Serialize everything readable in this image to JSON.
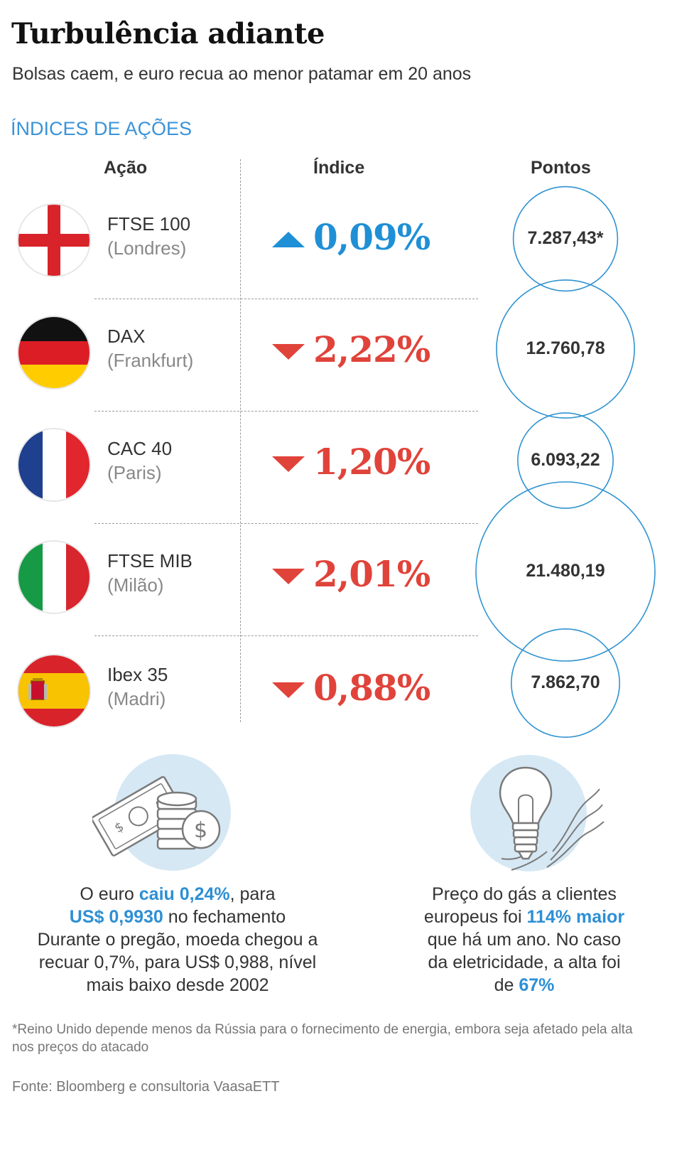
{
  "header": {
    "title": "Turbulência adiante",
    "subtitle": "Bolsas caem, e euro recua ao menor patamar em 20 anos"
  },
  "section": {
    "label": "ÍNDICES DE AÇÕES"
  },
  "columns": {
    "acao": "Ação",
    "indice": "Índice",
    "pontos": "Pontos"
  },
  "colors": {
    "up": "#1f8fd6",
    "down": "#e0433a",
    "accent": "#3a93d8",
    "bubble": "#2f93d1"
  },
  "rows": [
    {
      "name": "FTSE 100",
      "city": "(Londres)",
      "change": "0,09%",
      "direction": "up",
      "points": "7.287,43*",
      "points_value": 7287.43,
      "flag": "england-flag"
    },
    {
      "name": "DAX",
      "city": "(Frankfurt)",
      "change": "2,22%",
      "direction": "down",
      "points": "12.760,78",
      "points_value": 12760.78,
      "flag": "germany-flag"
    },
    {
      "name": "CAC 40",
      "city": "(Paris)",
      "change": "1,20%",
      "direction": "down",
      "points": "6.093,22",
      "points_value": 6093.22,
      "flag": "france-flag"
    },
    {
      "name": "FTSE MIB",
      "city": "(Milão)",
      "change": "2,01%",
      "direction": "down",
      "points": "21.480,19",
      "points_value": 21480.19,
      "flag": "italy-flag"
    },
    {
      "name": "Ibex 35",
      "city": "(Madri)",
      "change": "0,88%",
      "direction": "down",
      "points": "7.862,70",
      "points_value": 7862.7,
      "flag": "spain-flag"
    }
  ],
  "notes": {
    "euro": {
      "icon": "money-coins-icon",
      "part1": "O euro ",
      "hl1": "caiu 0,24%",
      "part2": ", para",
      "hl2": "US$ 0,9930",
      "part3": " no fechamento",
      "line3": "Durante o pregão, moeda chegou a",
      "line4": "recuar 0,7%, para US$ 0,988, nível",
      "line5": "mais baixo desde 2002"
    },
    "gas": {
      "icon": "lightbulb-icon",
      "line1": "Preço do gás a clientes",
      "part2": "europeus foi ",
      "hl1": "114% maior",
      "line3": "que há um ano. No caso",
      "line4": "da eletricidade, a alta foi",
      "part5": "de ",
      "hl2": "67%"
    }
  },
  "footnote": "*Reino Unido depende menos da Rússia para o fornecimento de energia, embora seja afetado pela alta nos preços do atacado",
  "source": "Fonte: Bloomberg e consultoria VaasaETT"
}
